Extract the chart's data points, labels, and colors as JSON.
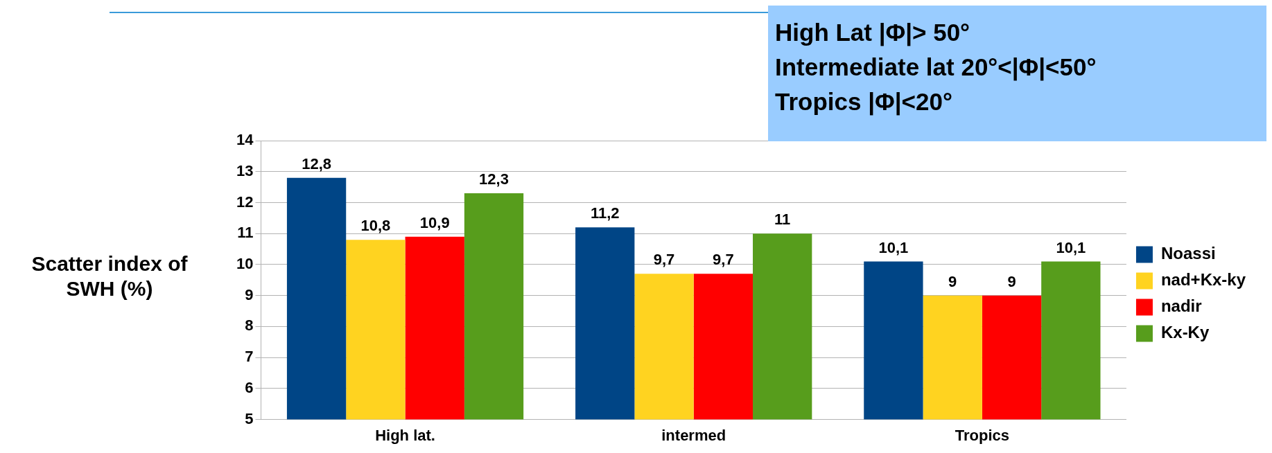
{
  "chart_data": {
    "type": "bar",
    "ylabel": "Scatter index of SWH (%)",
    "categories": [
      "High lat.",
      "intermed",
      "Tropics"
    ],
    "series": [
      {
        "name": "Noassi",
        "color": "#004586",
        "values": [
          12.8,
          11.2,
          10.1
        ],
        "value_labels": [
          "12,8",
          "11,2",
          "10,1"
        ]
      },
      {
        "name": "nad+Kx-ky",
        "color": "#ffd320",
        "values": [
          10.8,
          9.7,
          9
        ],
        "value_labels": [
          "10,8",
          "9,7",
          "9"
        ]
      },
      {
        "name": "nadir",
        "color": "#ff0000",
        "values": [
          10.9,
          9.7,
          9
        ],
        "value_labels": [
          "10,9",
          "9,7",
          "9"
        ]
      },
      {
        "name": "Kx-Ky",
        "color": "#579d1c",
        "values": [
          12.3,
          11,
          10.1
        ],
        "value_labels": [
          "12,3",
          "11",
          "10,1"
        ]
      }
    ],
    "ylim": [
      5,
      14
    ],
    "yticks": [
      5,
      6,
      7,
      8,
      9,
      10,
      11,
      12,
      13,
      14
    ],
    "grid": "y",
    "legend": "right",
    "annotations": [
      "High Lat |Φ|> 50°",
      "Intermediate lat 20°<|Φ|<50°",
      "Tropics |Φ|<20°"
    ]
  }
}
